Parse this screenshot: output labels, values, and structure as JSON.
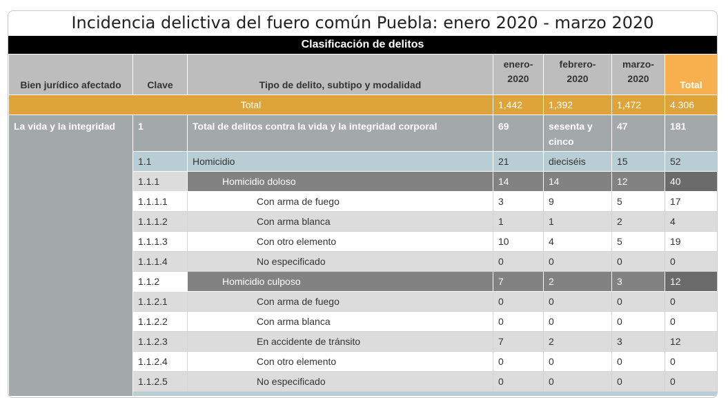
{
  "title": "Incidencia delictiva del fuero común Puebla: enero 2020 - marzo 2020",
  "section": "Clasificación de delitos",
  "headers": {
    "bien": "Bien jurídico afectado",
    "clave": "Clave",
    "tipo": "Tipo de delito, subtipo y modalidad",
    "enero": "enero-\n2020",
    "febrero": "febrero-\n2020",
    "marzo": "marzo-\n2020",
    "total": "Total"
  },
  "total_row": {
    "label": "Total",
    "enero": "1,442",
    "febrero": "1,392",
    "marzo": "1,472",
    "total": "4.306"
  },
  "bien_juridico": "La vida y la integridad",
  "rows": [
    {
      "clave": "1",
      "tipo": "Total de delitos contra la vida y la integridad corporal",
      "enero": "69",
      "febrero": "sesenta y cinco",
      "marzo": "47",
      "total": "181"
    },
    {
      "clave": "1.1",
      "tipo": "Homicidio",
      "enero": "21",
      "febrero": "dieciséis",
      "marzo": "15",
      "total": "52"
    },
    {
      "clave": "1.1.1",
      "tipo": "Homicidio doloso",
      "enero": "14",
      "febrero": "14",
      "marzo": "12",
      "total": "40"
    },
    {
      "clave": "1.1.1.1",
      "tipo": "Con arma de fuego",
      "enero": "3",
      "febrero": "9",
      "marzo": "5",
      "total": "17"
    },
    {
      "clave": "1.1.1.2",
      "tipo": "Con arma blanca",
      "enero": "1",
      "febrero": "1",
      "marzo": "2",
      "total": "4"
    },
    {
      "clave": "1.1.1.3",
      "tipo": "Con otro elemento",
      "enero": "10",
      "febrero": "4",
      "marzo": "5",
      "total": "19"
    },
    {
      "clave": "1.1.1.4",
      "tipo": "No especificado",
      "enero": "0",
      "febrero": "0",
      "marzo": "0",
      "total": "0"
    },
    {
      "clave": "1.1.2",
      "tipo": "Homicidio culposo",
      "enero": "7",
      "febrero": "2",
      "marzo": "3",
      "total": "12"
    },
    {
      "clave": "1.1.2.1",
      "tipo": "Con arma de fuego",
      "enero": "0",
      "febrero": "0",
      "marzo": "0",
      "total": "0"
    },
    {
      "clave": "1.1.2.2",
      "tipo": "Con arma blanca",
      "enero": "0",
      "febrero": "0",
      "marzo": "0",
      "total": "0"
    },
    {
      "clave": "1.1.2.3",
      "tipo": "En accidente de tránsito",
      "enero": "7",
      "febrero": "2",
      "marzo": "3",
      "total": "12"
    },
    {
      "clave": "1.1.2.4",
      "tipo": "Con otro elemento",
      "enero": "0",
      "febrero": "0",
      "marzo": "0",
      "total": "0"
    },
    {
      "clave": "1.1.2.5",
      "tipo": "No especificado",
      "enero": "0",
      "febrero": "0",
      "marzo": "0",
      "total": "0"
    }
  ]
}
